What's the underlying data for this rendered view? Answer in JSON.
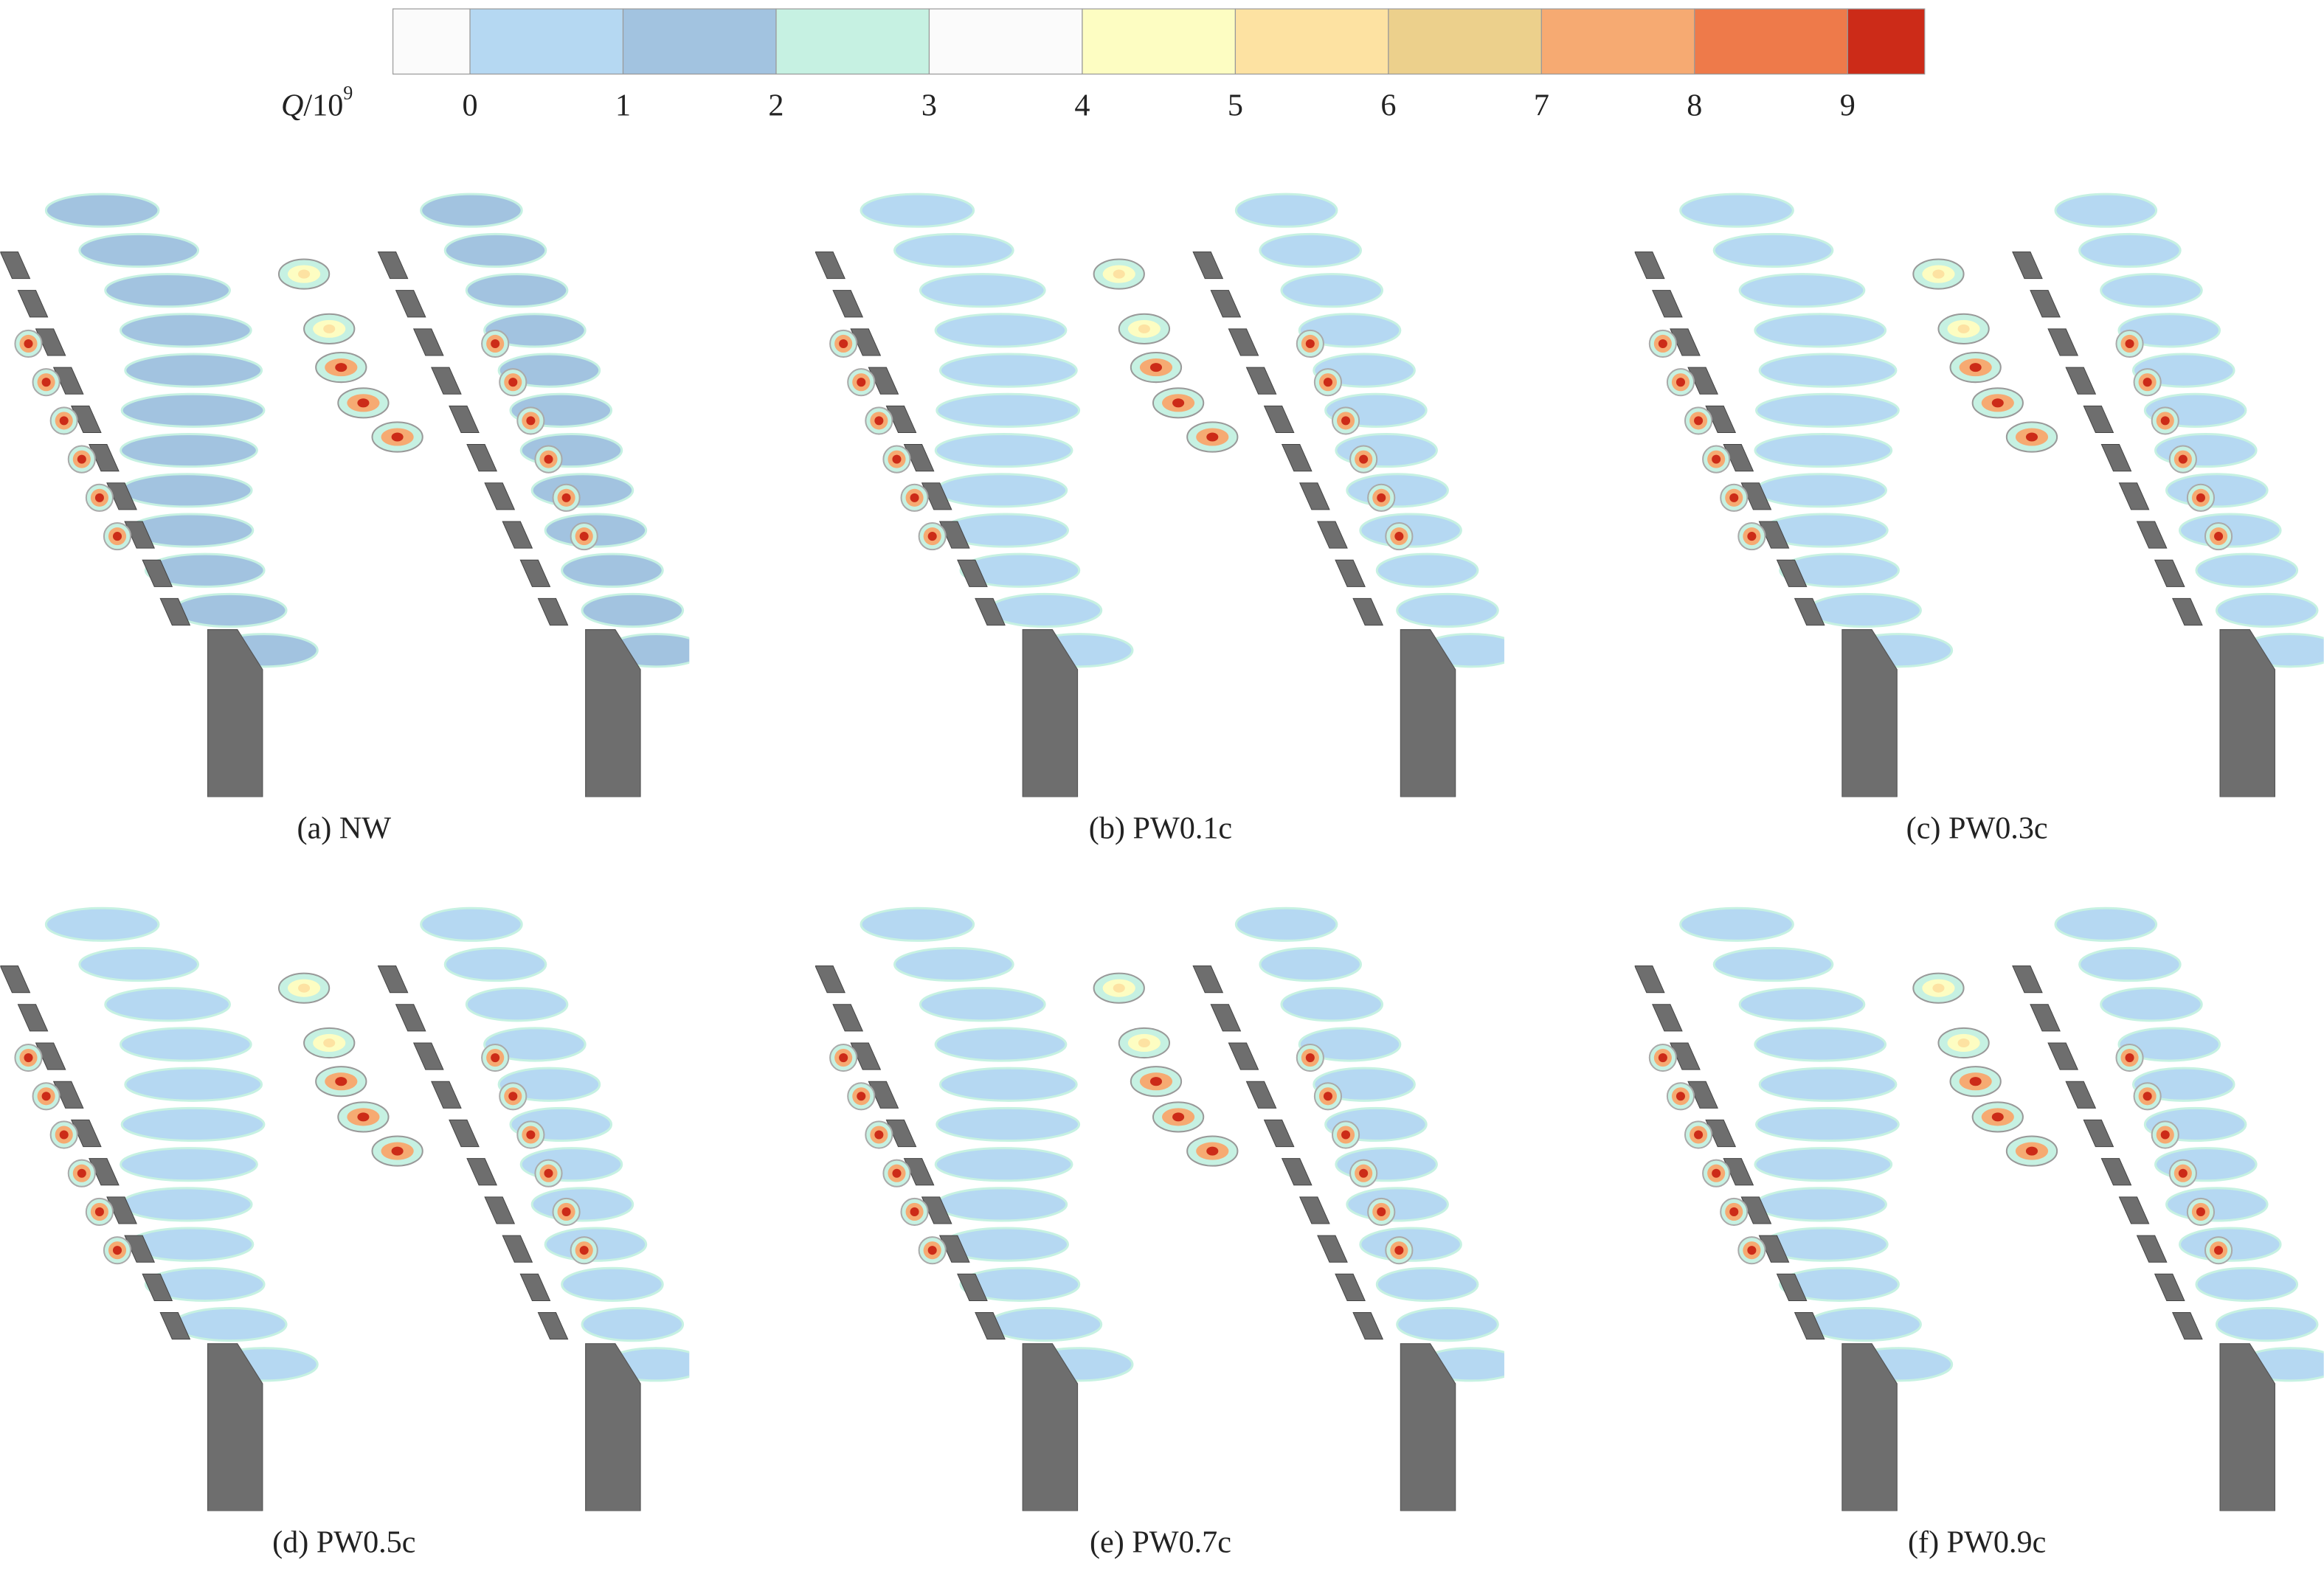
{
  "colorbar": {
    "label": {
      "symbol": "Q",
      "base": "/10",
      "exponent": "9"
    },
    "ticks": [
      0,
      1,
      2,
      3,
      4,
      5,
      6,
      7,
      8,
      9
    ],
    "colors": [
      "#fbfbfb",
      "#b5d8f2",
      "#a2c3e0",
      "#c6f1e2",
      "#fbfbfb",
      "#fdfdc2",
      "#fde2a2",
      "#ecd08c",
      "#f6aa72",
      "#ee7a4a",
      "#cc2b18"
    ]
  },
  "panels": [
    {
      "caption": "(a) NW"
    },
    {
      "caption": "(b) PW0.1c"
    },
    {
      "caption": "(c) PW0.3c"
    },
    {
      "caption": "(d) PW0.5c"
    },
    {
      "caption": "(e) PW0.7c"
    },
    {
      "caption": "(f) PW0.9c"
    }
  ]
}
